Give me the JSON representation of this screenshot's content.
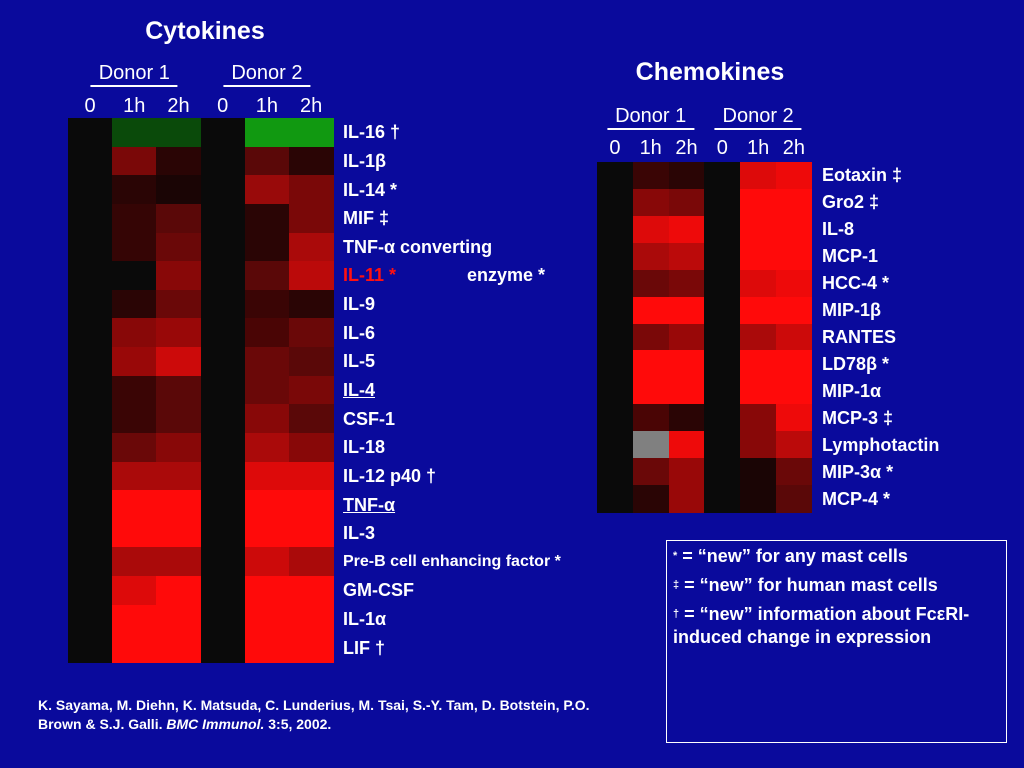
{
  "cytokines": {
    "title": "Cytokines",
    "donors": [
      {
        "name": "Donor 1",
        "timepoints": [
          "0",
          "1h",
          "2h"
        ]
      },
      {
        "name": "Donor 2",
        "timepoints": [
          "0",
          "1h",
          "2h"
        ]
      }
    ],
    "rows": [
      {
        "label": "IL-16 †",
        "colors": [
          "#0a0a0a",
          "#0a4a0a",
          "#0a4a0a",
          "#0a0a0a",
          "#119911",
          "#119911"
        ]
      },
      {
        "label": "IL-1β",
        "colors": [
          "#0a0a0a",
          "#7a0808",
          "#2a0505",
          "#0a0a0a",
          "#5a0808",
          "#2a0505"
        ]
      },
      {
        "label": "IL-14 *",
        "colors": [
          "#0a0a0a",
          "#2a0505",
          "#1a0505",
          "#0a0a0a",
          "#990a0a",
          "#7a0808"
        ]
      },
      {
        "label": "MIF ‡",
        "colors": [
          "#0a0a0a",
          "#350505",
          "#5a0808",
          "#0a0a0a",
          "#2a0505",
          "#7a0808"
        ]
      },
      {
        "label": "TNF-α converting",
        "colors": [
          "#0a0a0a",
          "#350505",
          "#6a0808",
          "#0a0a0a",
          "#2a0505",
          "#aa0a0a"
        ]
      },
      {
        "label": "IL-11 *",
        "text_color": "#ff1010",
        "colors": [
          "#0a0a0a",
          "#0a0a0a",
          "#880808",
          "#0a0a0a",
          "#5a0808",
          "#bb0a0a"
        ]
      },
      {
        "label": "IL-9",
        "colors": [
          "#0a0a0a",
          "#2a0505",
          "#6a0808",
          "#0a0a0a",
          "#3a0505",
          "#2a0505"
        ]
      },
      {
        "label": "IL-6",
        "colors": [
          "#0a0a0a",
          "#880808",
          "#990808",
          "#0a0a0a",
          "#4a0505",
          "#6a0808"
        ]
      },
      {
        "label": "IL-5",
        "colors": [
          "#0a0a0a",
          "#990808",
          "#cc0a0a",
          "#0a0a0a",
          "#6a0808",
          "#5a0808"
        ]
      },
      {
        "label": "IL-4",
        "underline": true,
        "colors": [
          "#0a0a0a",
          "#3a0505",
          "#5a0808",
          "#0a0a0a",
          "#6a0808",
          "#7a0808"
        ]
      },
      {
        "label": "CSF-1",
        "colors": [
          "#0a0a0a",
          "#3a0505",
          "#5a0808",
          "#0a0a0a",
          "#880808",
          "#5a0808"
        ]
      },
      {
        "label": "IL-18",
        "colors": [
          "#0a0a0a",
          "#6a0808",
          "#880808",
          "#0a0a0a",
          "#aa0a0a",
          "#880808"
        ]
      },
      {
        "label": "IL-12 p40 †",
        "colors": [
          "#0a0a0a",
          "#aa0a0a",
          "#aa0a0a",
          "#0a0a0a",
          "#dd0a0a",
          "#dd0a0a"
        ]
      },
      {
        "label": "TNF-α",
        "underline": true,
        "colors": [
          "#0a0a0a",
          "#ff0a0a",
          "#ff0a0a",
          "#0a0a0a",
          "#ff0a0a",
          "#ff0a0a"
        ]
      },
      {
        "label": "IL-3",
        "colors": [
          "#0a0a0a",
          "#ff0a0a",
          "#ff0a0a",
          "#0a0a0a",
          "#ff0a0a",
          "#ff0a0a"
        ]
      },
      {
        "label": "Pre-B cell enhancing factor *",
        "small": true,
        "colors": [
          "#0a0a0a",
          "#aa0a0a",
          "#aa0a0a",
          "#0a0a0a",
          "#cc0a0a",
          "#aa0a0a"
        ]
      },
      {
        "label": "GM-CSF",
        "colors": [
          "#0a0a0a",
          "#dd0a0a",
          "#ff0a0a",
          "#0a0a0a",
          "#ff0a0a",
          "#ff0a0a"
        ]
      },
      {
        "label": "IL-1α",
        "colors": [
          "#0a0a0a",
          "#ff0a0a",
          "#ff0a0a",
          "#0a0a0a",
          "#ff0a0a",
          "#ff0a0a"
        ]
      },
      {
        "label": "LIF †",
        "colors": [
          "#0a0a0a",
          "#ff0a0a",
          "#ff0a0a",
          "#0a0a0a",
          "#ff0a0a",
          "#ff0a0a"
        ]
      }
    ],
    "note": "enzyme *"
  },
  "chemokines": {
    "title": "Chemokines",
    "donors": [
      {
        "name": "Donor 1",
        "timepoints": [
          "0",
          "1h",
          "2h"
        ]
      },
      {
        "name": "Donor 2",
        "timepoints": [
          "0",
          "1h",
          "2h"
        ]
      }
    ],
    "rows": [
      {
        "label": "Eotaxin ‡",
        "colors": [
          "#0a0a0a",
          "#3a0505",
          "#2a0505",
          "#0a0a0a",
          "#dd0a0a",
          "#ee0a0a"
        ]
      },
      {
        "label": "Gro2 ‡",
        "colors": [
          "#0a0a0a",
          "#880808",
          "#7a0808",
          "#0a0a0a",
          "#ff0a0a",
          "#ff0a0a"
        ]
      },
      {
        "label": "IL-8",
        "colors": [
          "#0a0a0a",
          "#dd0a0a",
          "#ee0a0a",
          "#0a0a0a",
          "#ff0a0a",
          "#ff0a0a"
        ]
      },
      {
        "label": "MCP-1",
        "colors": [
          "#0a0a0a",
          "#aa0a0a",
          "#bb0a0a",
          "#0a0a0a",
          "#ff0a0a",
          "#ff0a0a"
        ]
      },
      {
        "label": "HCC-4 *",
        "colors": [
          "#0a0a0a",
          "#6a0808",
          "#7a0808",
          "#0a0a0a",
          "#dd0a0a",
          "#ee0a0a"
        ]
      },
      {
        "label": "MIP-1β",
        "colors": [
          "#0a0a0a",
          "#ff0a0a",
          "#ff0a0a",
          "#0a0a0a",
          "#ff0a0a",
          "#ff0a0a"
        ]
      },
      {
        "label": "RANTES",
        "colors": [
          "#0a0a0a",
          "#7a0808",
          "#990808",
          "#0a0a0a",
          "#aa0a0a",
          "#cc0a0a"
        ]
      },
      {
        "label": "LD78β *",
        "colors": [
          "#0a0a0a",
          "#ff0a0a",
          "#ff0a0a",
          "#0a0a0a",
          "#ff0a0a",
          "#ff0a0a"
        ]
      },
      {
        "label": "MIP-1α",
        "colors": [
          "#0a0a0a",
          "#ff0a0a",
          "#ff0a0a",
          "#0a0a0a",
          "#ff0a0a",
          "#ff0a0a"
        ]
      },
      {
        "label": "MCP-3 ‡",
        "colors": [
          "#0a0a0a",
          "#4a0505",
          "#2a0505",
          "#0a0a0a",
          "#880808",
          "#ee0a0a"
        ]
      },
      {
        "label": "Lymphotactin",
        "colors": [
          "#0a0a0a",
          "#808080",
          "#ee0a0a",
          "#0a0a0a",
          "#880808",
          "#bb0a0a"
        ]
      },
      {
        "label": "MIP-3α *",
        "colors": [
          "#0a0a0a",
          "#6a0808",
          "#990808",
          "#0a0a0a",
          "#1a0505",
          "#6a0808"
        ]
      },
      {
        "label": "MCP-4 *",
        "colors": [
          "#0a0a0a",
          "#2a0505",
          "#990808",
          "#0a0a0a",
          "#1a0505",
          "#5a0808"
        ]
      }
    ]
  },
  "legend": [
    {
      "symbol": "*",
      "text": "= “new” for any mast cells"
    },
    {
      "symbol": "‡",
      "text": "= “new” for human mast cells"
    },
    {
      "symbol": "†",
      "text": "= “new” information about FcεRI-induced change in expression"
    }
  ],
  "citation": {
    "authors": "K. Sayama, M. Diehn, K. Matsuda, C. Lunderius, M. Tsai, S.-Y. Tam, D. Botstein, P.O. Brown & S.J. Galli.",
    "journal": "BMC Immunol.",
    "details": "3:5, 2002."
  }
}
